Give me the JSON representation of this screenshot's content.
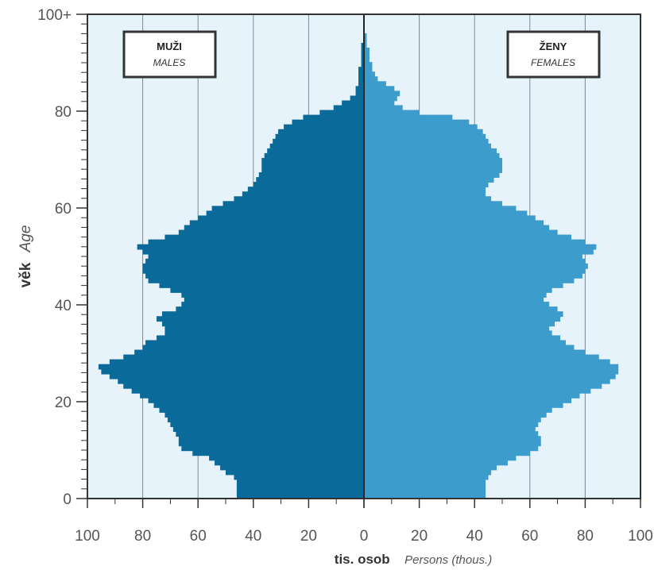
{
  "chart_data": {
    "type": "bar",
    "orientation": "horizontal-population-pyramid",
    "y_axis": {
      "label_bold": "věk",
      "label_italic": "Age",
      "ticks": [
        "0",
        "20",
        "40",
        "60",
        "80",
        "100+"
      ],
      "tick_values": [
        0,
        20,
        40,
        60,
        80,
        100
      ],
      "range": [
        0,
        100
      ]
    },
    "x_axis": {
      "label_bold": "tis. osob",
      "label_italic": "Persons (thous.)",
      "left_ticks": [
        "100",
        "80",
        "60",
        "40",
        "20"
      ],
      "center_tick": "0",
      "right_ticks": [
        "20",
        "40",
        "60",
        "80",
        "100"
      ],
      "range": [
        0,
        100
      ]
    },
    "grid": true,
    "legend_placement": "top-left and top-right",
    "categories_age": [
      0,
      1,
      2,
      3,
      4,
      5,
      6,
      7,
      8,
      9,
      10,
      11,
      12,
      13,
      14,
      15,
      16,
      17,
      18,
      19,
      20,
      21,
      22,
      23,
      24,
      25,
      26,
      27,
      28,
      29,
      30,
      31,
      32,
      33,
      34,
      35,
      36,
      37,
      38,
      39,
      40,
      41,
      42,
      43,
      44,
      45,
      46,
      47,
      48,
      49,
      50,
      51,
      52,
      53,
      54,
      55,
      56,
      57,
      58,
      59,
      60,
      61,
      62,
      63,
      64,
      65,
      66,
      67,
      68,
      69,
      70,
      71,
      72,
      73,
      74,
      75,
      76,
      77,
      78,
      79,
      80,
      81,
      82,
      83,
      84,
      85,
      86,
      87,
      88,
      89,
      90,
      91,
      92,
      93,
      94,
      95,
      96,
      97,
      98,
      99,
      100
    ],
    "series": [
      {
        "name": "MUŽI",
        "name_en": "MALES",
        "side": "left",
        "color": "#0a6a9a",
        "values": [
          46,
          46,
          46,
          46,
          47,
          50,
          52,
          54,
          56,
          62,
          66,
          67,
          67,
          68,
          69,
          70,
          71,
          72,
          74,
          76,
          78,
          81,
          84,
          87,
          89,
          92,
          95,
          96,
          92,
          87,
          83,
          80,
          79,
          75,
          72,
          72,
          73,
          75,
          73,
          68,
          66,
          65,
          66,
          70,
          74,
          78,
          79,
          80,
          80,
          79,
          78,
          80,
          82,
          78,
          72,
          67,
          65,
          63,
          60,
          57,
          55,
          51,
          47,
          44,
          42,
          40,
          39,
          38,
          37,
          37,
          37,
          36,
          35,
          34,
          33,
          32,
          31,
          29,
          26,
          22,
          16,
          11,
          8,
          5,
          3,
          3,
          2,
          2,
          2,
          2,
          1,
          1,
          1,
          1,
          1,
          0,
          0,
          0,
          0,
          0,
          0
        ]
      },
      {
        "name": "ŽENY",
        "name_en": "FEMALES",
        "side": "right",
        "color": "#3c9ccc",
        "values": [
          44,
          44,
          44,
          44,
          45,
          46,
          48,
          52,
          55,
          60,
          63,
          64,
          64,
          63,
          62,
          63,
          64,
          66,
          68,
          72,
          75,
          78,
          82,
          86,
          89,
          91,
          92,
          92,
          89,
          85,
          80,
          76,
          73,
          71,
          68,
          67,
          69,
          71,
          72,
          70,
          67,
          65,
          66,
          68,
          72,
          76,
          79,
          80,
          81,
          80,
          79,
          83,
          84,
          80,
          75,
          70,
          67,
          65,
          62,
          59,
          55,
          50,
          46,
          44,
          44,
          45,
          47,
          49,
          50,
          50,
          50,
          49,
          48,
          46,
          45,
          44,
          43,
          41,
          38,
          32,
          20,
          14,
          11,
          12,
          13,
          11,
          8,
          5,
          4,
          3,
          3,
          2,
          2,
          2,
          1,
          1,
          1,
          0,
          0,
          0,
          0
        ]
      }
    ],
    "legend": {
      "males_label": "MUŽI",
      "males_sublabel": "MALES",
      "females_label": "ŽENY",
      "females_sublabel": "FEMALES"
    },
    "colors": {
      "background": "#e6f3fb",
      "males": "#0a6a9a",
      "females": "#3c9ccc",
      "grid": "#7a8a94",
      "frame": "#333333"
    }
  }
}
